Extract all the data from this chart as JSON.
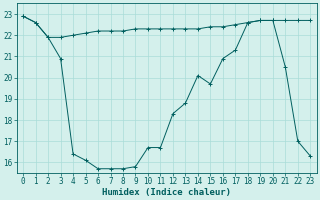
{
  "xlabel": "Humidex (Indice chaleur)",
  "bg_color": "#d4f0ec",
  "grid_color": "#aaddd8",
  "line_color": "#005f5f",
  "line1_x": [
    0,
    1,
    2,
    3,
    4,
    5,
    6,
    7,
    8,
    9,
    10,
    11,
    12,
    13,
    14,
    15,
    16,
    17,
    18,
    19,
    20,
    21,
    22,
    23
  ],
  "line1_y": [
    22.9,
    22.6,
    21.9,
    21.9,
    22.0,
    22.1,
    22.2,
    22.2,
    22.2,
    22.3,
    22.3,
    22.3,
    22.3,
    22.3,
    22.3,
    22.4,
    22.4,
    22.5,
    22.6,
    22.7,
    22.7,
    22.7,
    22.7,
    22.7
  ],
  "line2_x": [
    0,
    1,
    2,
    3,
    4,
    5,
    6,
    7,
    8,
    9,
    10,
    11,
    12,
    13,
    14,
    15,
    16,
    17,
    18,
    19,
    20,
    21,
    22,
    23
  ],
  "line2_y": [
    22.9,
    22.6,
    21.9,
    20.9,
    16.4,
    16.1,
    15.7,
    15.7,
    15.7,
    15.8,
    16.7,
    16.7,
    18.3,
    18.8,
    20.1,
    19.7,
    20.9,
    21.3,
    22.6,
    22.7,
    22.7,
    20.5,
    17.0,
    16.3
  ],
  "ylim": [
    15.5,
    23.5
  ],
  "xlim": [
    -0.5,
    23.5
  ],
  "yticks": [
    16,
    17,
    18,
    19,
    20,
    21,
    22,
    23
  ],
  "xticks": [
    0,
    1,
    2,
    3,
    4,
    5,
    6,
    7,
    8,
    9,
    10,
    11,
    12,
    13,
    14,
    15,
    16,
    17,
    18,
    19,
    20,
    21,
    22,
    23
  ],
  "xlabel_fontsize": 6.5,
  "tick_fontsize": 5.5
}
